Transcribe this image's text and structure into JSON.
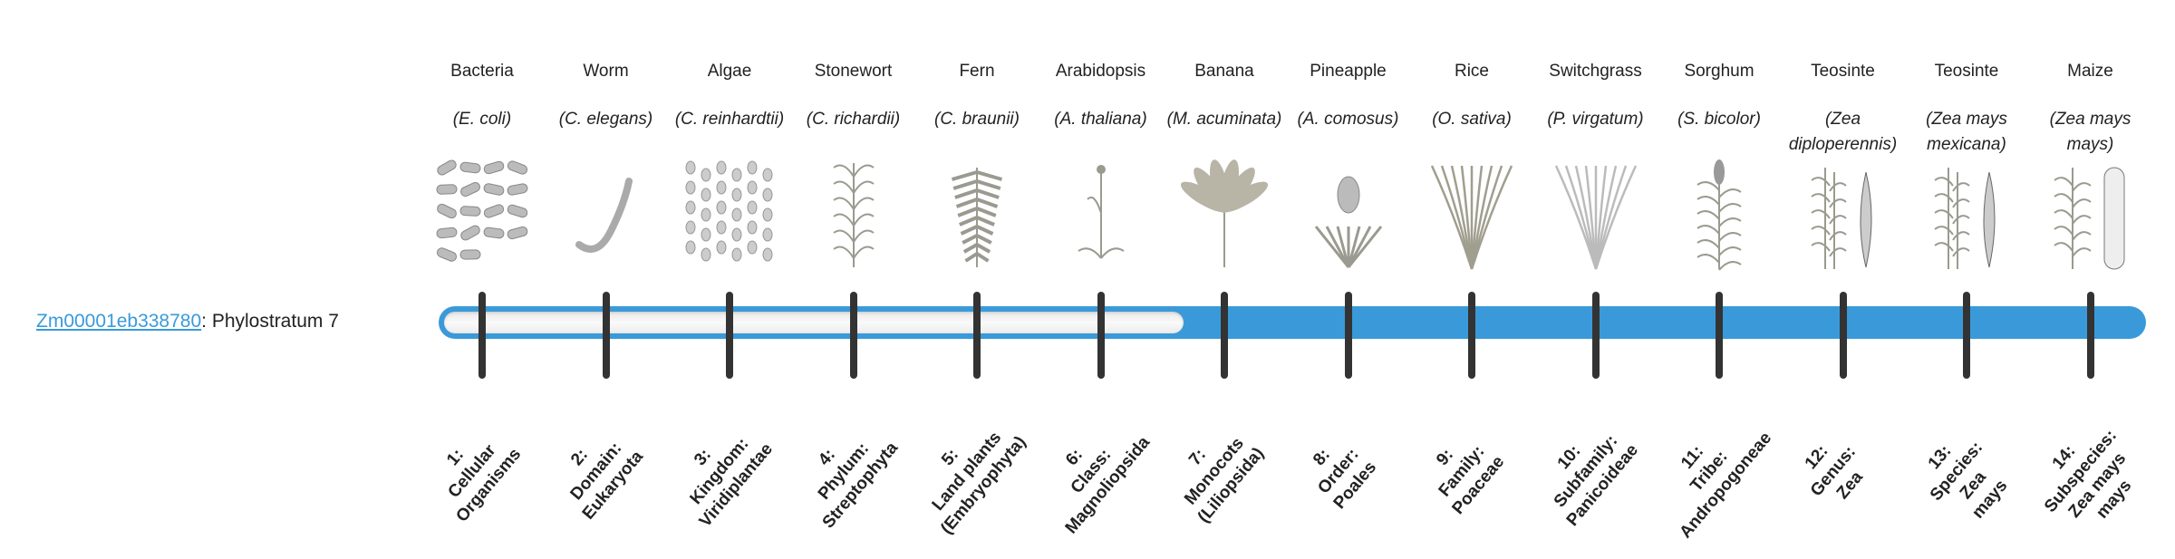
{
  "gene": {
    "id": "Zm00001eb338780",
    "separator": ": ",
    "stratum_text": "Phylostratum 7",
    "phylostratum": 7
  },
  "colors": {
    "accent": "#3a9ad9",
    "tick": "#333333",
    "illustration": "#9a9a90"
  },
  "organisms": [
    {
      "name": "Bacteria",
      "species": "(E. coli)",
      "icon": "bacteria"
    },
    {
      "name": "Worm",
      "species": "(C. elegans)",
      "icon": "worm"
    },
    {
      "name": "Algae",
      "species": "(C. reinhardtii)",
      "icon": "algae"
    },
    {
      "name": "Stonewort",
      "species": "(C. richardii)",
      "icon": "stonewort"
    },
    {
      "name": "Fern",
      "species": "(C. braunii)",
      "icon": "fern"
    },
    {
      "name": "Arabidopsis",
      "species": "(A. thaliana)",
      "icon": "arabidopsis"
    },
    {
      "name": "Banana",
      "species": "(M. acuminata)",
      "icon": "banana"
    },
    {
      "name": "Pineapple",
      "species": "(A. comosus)",
      "icon": "pineapple"
    },
    {
      "name": "Rice",
      "species": "(O. sativa)",
      "icon": "rice"
    },
    {
      "name": "Switchgrass",
      "species": "(P. virgatum)",
      "icon": "switchgrass"
    },
    {
      "name": "Sorghum",
      "species": "(S. bicolor)",
      "icon": "sorghum"
    },
    {
      "name": "Teosinte",
      "species": "(Zea diploperennis)",
      "icon": "teosinte"
    },
    {
      "name": "Teosinte",
      "species": "(Zea mays mexicana)",
      "icon": "teosinte"
    },
    {
      "name": "Maize",
      "species": "(Zea mays mays)",
      "icon": "maize"
    }
  ],
  "strata": [
    [
      "1:",
      "Cellular",
      "Organisms"
    ],
    [
      "2:",
      "Domain:",
      "Eukaryota"
    ],
    [
      "3:",
      "Kingdom:",
      "Viridiplantae"
    ],
    [
      "4:",
      "Phylum:",
      "Streptophyta"
    ],
    [
      "5:",
      "Land plants",
      "(Embryophyta)"
    ],
    [
      "6:",
      "Class:",
      "Magnoliopsida"
    ],
    [
      "7:",
      "Monocots",
      "(Liliopsida)"
    ],
    [
      "8:",
      "Order:",
      "Poales"
    ],
    [
      "9:",
      "Family:",
      "Poaceae"
    ],
    [
      "10:",
      "Subfamily:",
      "Panicoideae"
    ],
    [
      "11:",
      "Tribe:",
      "Andropogoneae"
    ],
    [
      "12:",
      "Genus:",
      "Zea"
    ],
    [
      "13:",
      "Species:",
      "Zea",
      "mays"
    ],
    [
      "14:",
      "Subspecies:",
      "Zea mays",
      "mays"
    ]
  ]
}
